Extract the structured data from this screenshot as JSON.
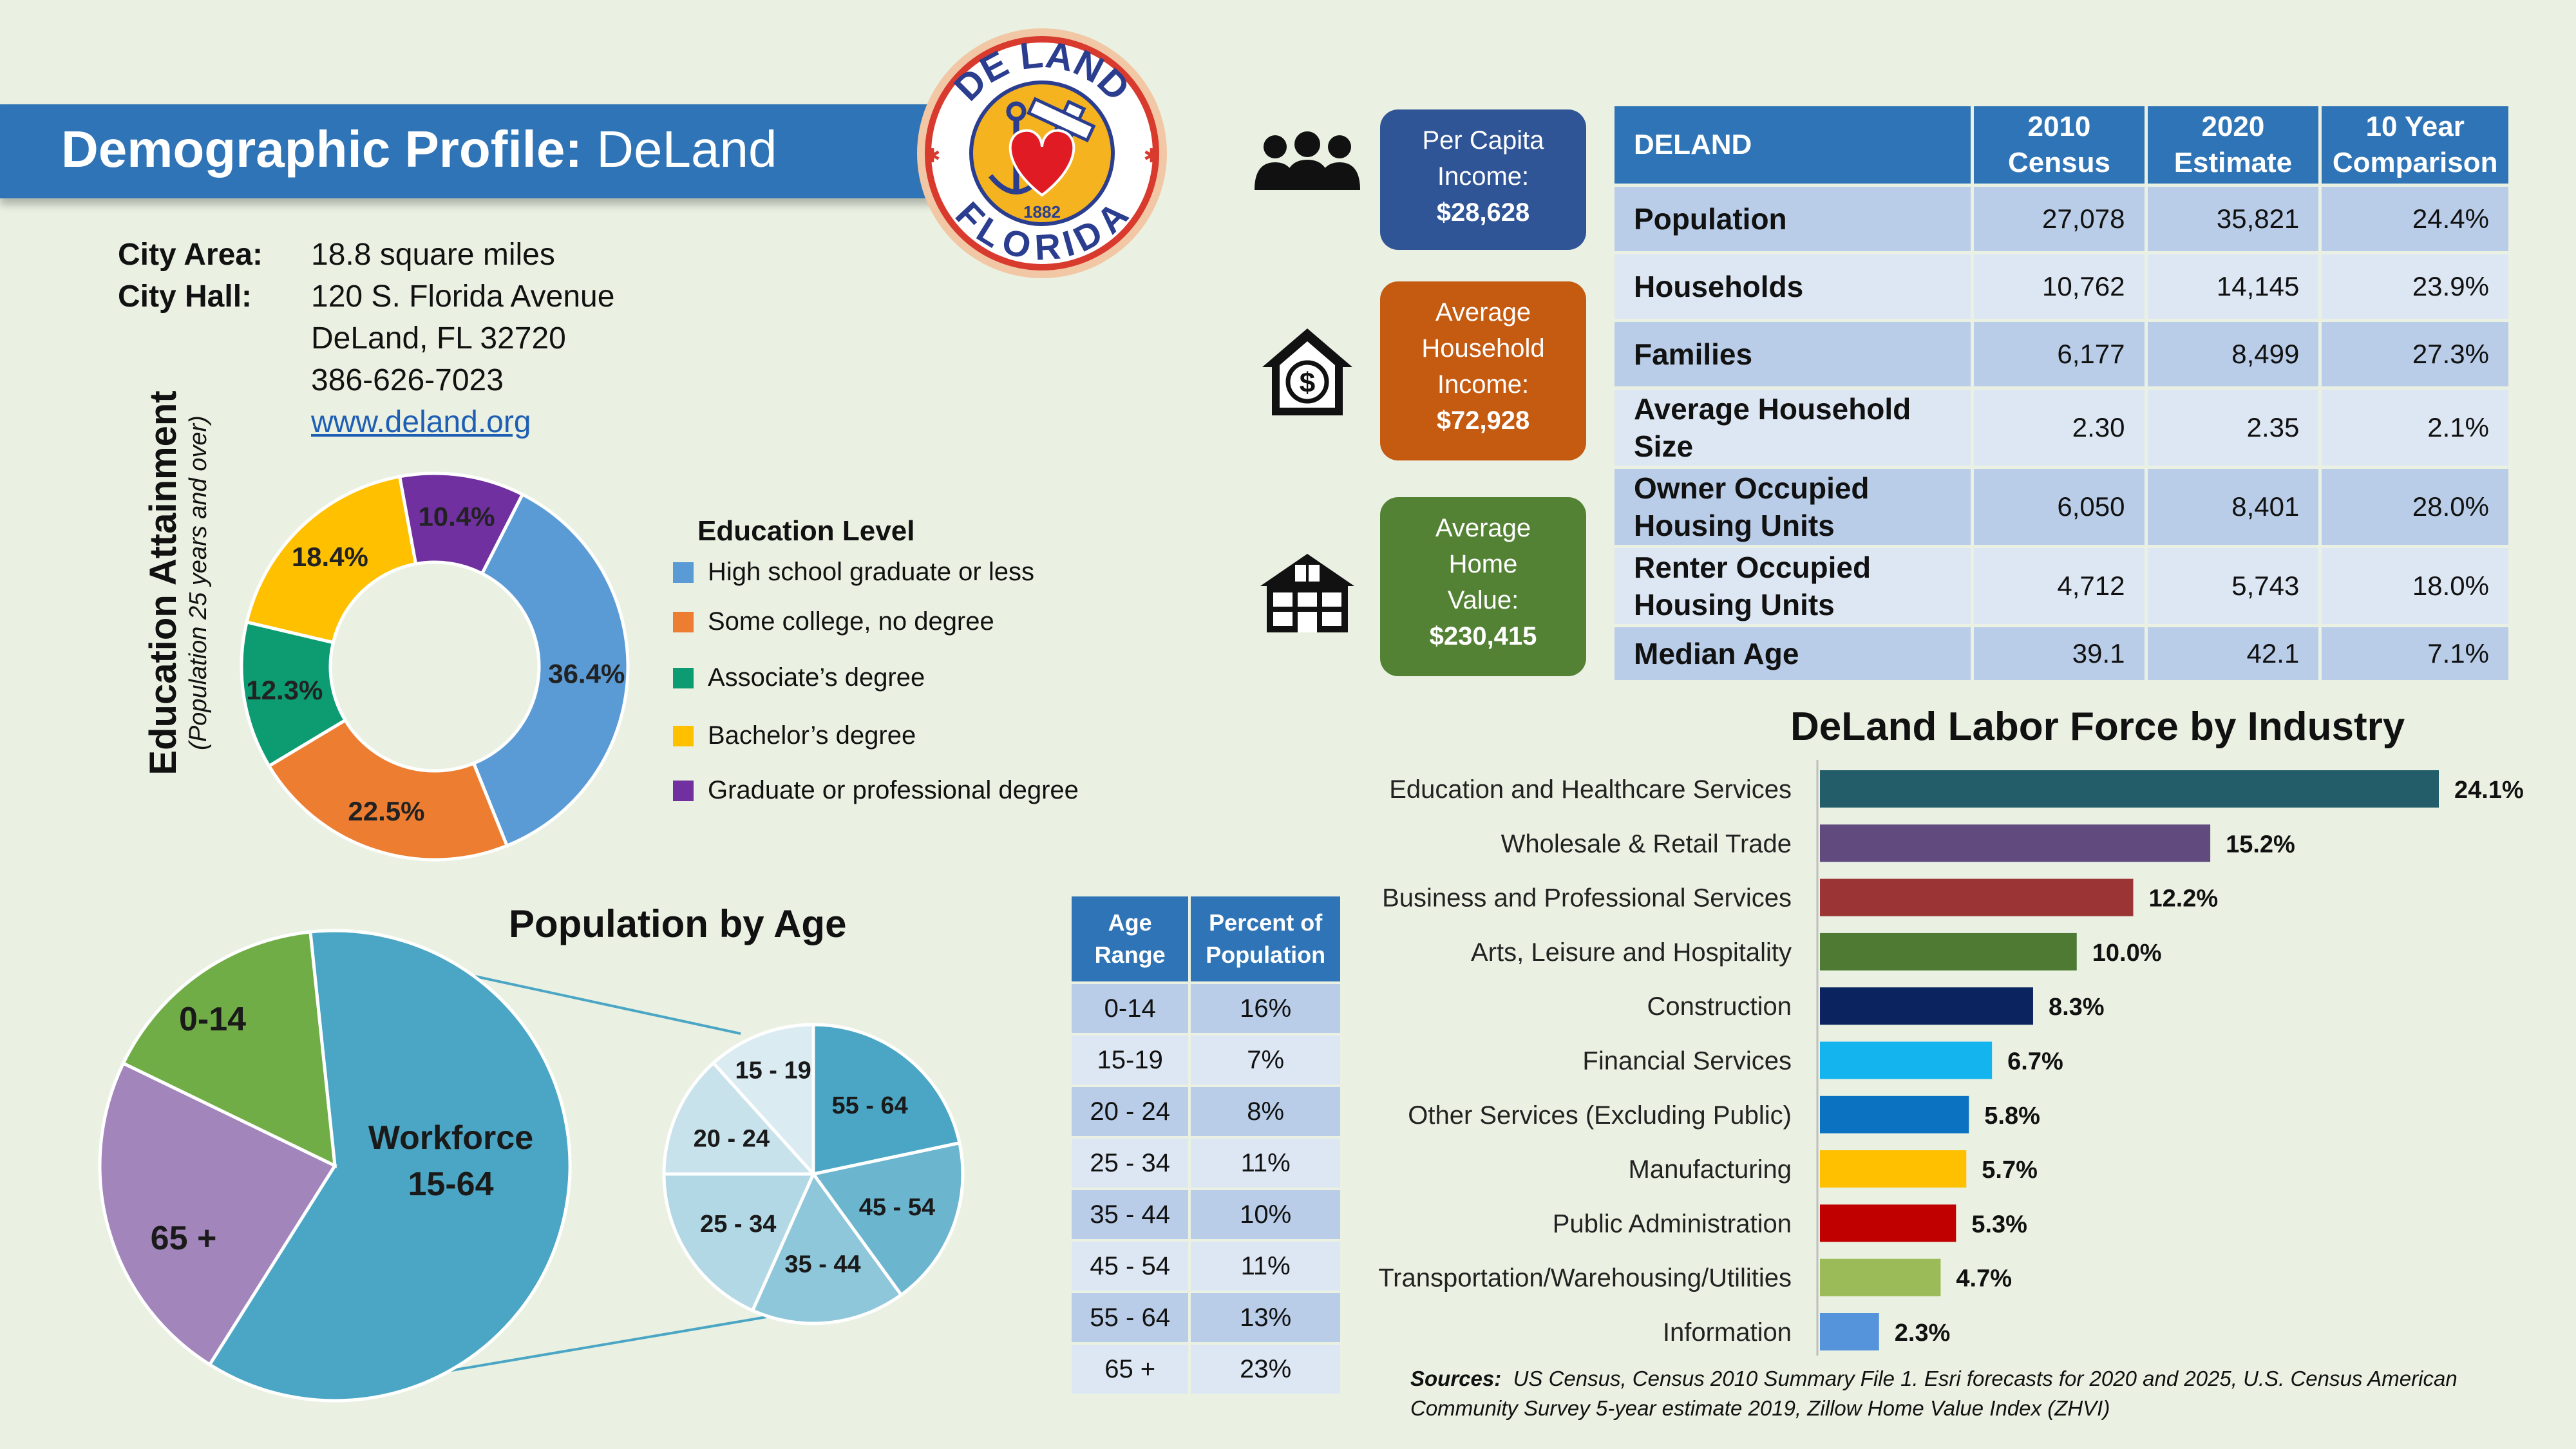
{
  "header": {
    "title_bold": "Demographic Profile:",
    "title_city": "DeLand"
  },
  "logo": {
    "top_text": "DE LAND",
    "bottom_text": "FLORIDA",
    "year": "1882",
    "colors": {
      "ring": "#d83a2e",
      "inner": "#f5b31f",
      "text": "#2a3d8f",
      "heart": "#e01b24"
    }
  },
  "city_info": {
    "area_label": "City Area:",
    "area_value": "18.8 square miles",
    "hall_label": "City Hall:",
    "address_line1": "120 S. Florida Avenue",
    "address_line2": "DeLand, FL 32720",
    "phone": "386-626-7023",
    "website": "www.deland.org"
  },
  "education": {
    "vertical_title": "Education Attainment",
    "vertical_subtitle": "(Population 25 years and over)",
    "legend_title": "Education Level",
    "legend": [
      {
        "label": "High school graduate or less",
        "color": "#5b9bd5"
      },
      {
        "label": "Some college, no degree",
        "color": "#ed7d31"
      },
      {
        "label": "Associate’s degree",
        "color": "#0d9b72"
      },
      {
        "label": "Bachelor’s degree",
        "color": "#ffc000"
      },
      {
        "label": "Graduate or professional degree",
        "color": "#7030a0"
      }
    ]
  },
  "info_boxes": [
    {
      "icon": "people-icon",
      "line1": "Per Capita",
      "line2": "Income:",
      "line3": "",
      "value": "$28,628",
      "color": "#2f5597"
    },
    {
      "icon": "house-dollar-icon",
      "line1": "Average",
      "line2": "Household",
      "line3": "Income:",
      "value": "$72,928",
      "color": "#c55a11"
    },
    {
      "icon": "home-icon",
      "line1": "Average",
      "line2": "Home",
      "line3": "Value:",
      "value": "$230,415",
      "color": "#548235"
    }
  ],
  "demo_table": {
    "headers": [
      "DELAND",
      "2010 Census",
      "2020 Estimate",
      "10 Year Comparison"
    ],
    "rows": [
      {
        "label": "Population",
        "c2010": "27,078",
        "c2020": "35,821",
        "change": "24.4%"
      },
      {
        "label": "Households",
        "c2010": "10,762",
        "c2020": "14,145",
        "change": "23.9%"
      },
      {
        "label": "Families",
        "c2010": "6,177",
        "c2020": "8,499",
        "change": "27.3%"
      },
      {
        "label": "Average Household Size",
        "c2010": "2.30",
        "c2020": "2.35",
        "change": "2.1%"
      },
      {
        "label": "Owner Occupied Housing Units",
        "c2010": "6,050",
        "c2020": "8,401",
        "change": "28.0%"
      },
      {
        "label": "Renter Occupied Housing Units",
        "c2010": "4,712",
        "c2020": "5,743",
        "change": "18.0%"
      },
      {
        "label": "Median Age",
        "c2010": "39.1",
        "c2020": "42.1",
        "change": "7.1%"
      }
    ]
  },
  "age_table": {
    "headers": [
      "Age Range",
      "Percent of Population"
    ],
    "rows": [
      {
        "range": "0-14",
        "pct": "16%"
      },
      {
        "range": "15-19",
        "pct": "7%"
      },
      {
        "range": "20 - 24",
        "pct": "8%"
      },
      {
        "range": "25 - 34",
        "pct": "11%"
      },
      {
        "range": "35 - 44",
        "pct": "10%"
      },
      {
        "range": "45 - 54",
        "pct": "11%"
      },
      {
        "range": "55 - 64",
        "pct": "13%"
      },
      {
        "range": "65 +",
        "pct": "23%"
      }
    ]
  },
  "sources": {
    "label": "Sources:",
    "text": "US Census, Census 2010 Summary File 1.  Esri forecasts for 2020 and 2025, U.S. Census American Community Survey 5-year estimate 2019, Zillow Home Value Index (ZHVI)"
  },
  "chart_data": [
    {
      "type": "pie",
      "variant": "donut",
      "title": "",
      "categories": [
        "High school graduate or less",
        "Some college, no degree",
        "Associate’s degree",
        "Bachelor’s degree",
        "Graduate or professional degree"
      ],
      "values": [
        36.4,
        22.5,
        12.3,
        18.4,
        10.4
      ],
      "labels": [
        "36.4%",
        "22.5%",
        "12.3%",
        "18.4%",
        "10.4%"
      ],
      "colors": [
        "#5b9bd5",
        "#ed7d31",
        "#0d9b72",
        "#ffc000",
        "#7030a0"
      ]
    },
    {
      "type": "pie",
      "title": "Population by Age",
      "categories": [
        "Workforce 15-64",
        "65 +",
        "0-14"
      ],
      "values": [
        60,
        23,
        16
      ],
      "labels": [
        [
          "Workforce",
          "15-64"
        ],
        [
          "65 +"
        ],
        [
          "0-14"
        ]
      ],
      "colors": [
        "#4aa6c4",
        "#a185bb",
        "#71ad47"
      ]
    },
    {
      "type": "pie",
      "title": "",
      "categories": [
        "55 - 64",
        "45 - 54",
        "35 - 44",
        "25 - 34",
        "20 - 24",
        "15 - 19"
      ],
      "values": [
        13,
        11,
        10,
        11,
        8,
        7
      ],
      "colors": [
        "#4aa6c4",
        "#6bb5cf",
        "#8ec6da",
        "#b2d8e6",
        "#c8e2ec",
        "#dbebf2"
      ]
    },
    {
      "type": "bar",
      "orientation": "horizontal",
      "title": "DeLand Labor Force by Industry",
      "categories": [
        "Education and Healthcare Services",
        "Wholesale & Retail Trade",
        "Business and Professional Services",
        "Arts, Leisure and Hospitality",
        "Construction",
        "Financial Services",
        "Other Services (Excluding Public)",
        "Manufacturing",
        "Public Administration",
        "Transportation/Warehousing/Utilities",
        "Information"
      ],
      "values": [
        24.1,
        15.2,
        12.2,
        10.0,
        8.3,
        6.7,
        5.8,
        5.7,
        5.3,
        4.7,
        2.3
      ],
      "labels": [
        "24.1%",
        "15.2%",
        "12.2%",
        "10.0%",
        "8.3%",
        "6.7%",
        "5.8%",
        "5.7%",
        "5.3%",
        "4.7%",
        "2.3%"
      ],
      "colors": [
        "#235d6a",
        "#614a7e",
        "#9b3535",
        "#4f7a34",
        "#0b245f",
        "#14b4ee",
        "#0b71c1",
        "#ffc000",
        "#c00000",
        "#9bbb59",
        "#5594db"
      ]
    }
  ]
}
